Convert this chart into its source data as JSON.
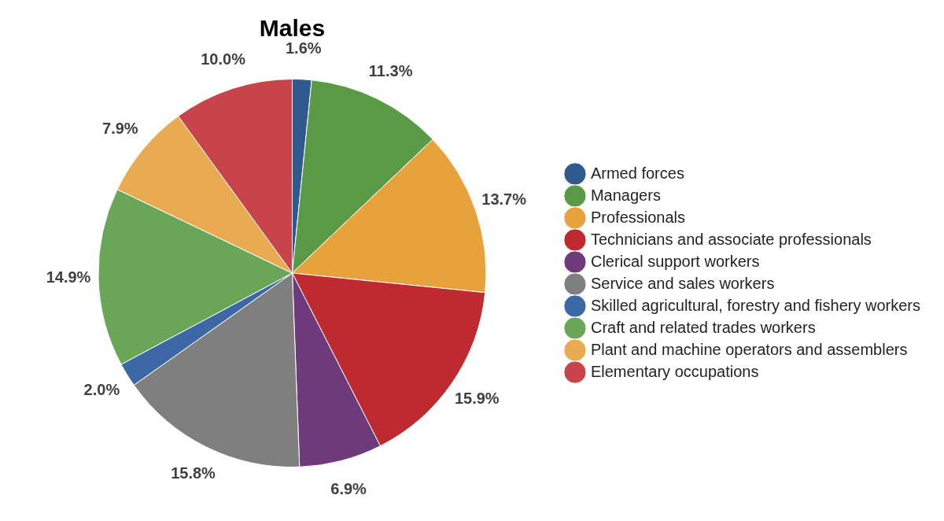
{
  "chart_data": {
    "type": "pie",
    "title": "Males",
    "categories": [
      "Armed forces",
      "Managers",
      "Professionals",
      "Technicians and associate professionals",
      "Clerical support workers",
      "Service and sales workers",
      "Skilled agricultural, forestry and fishery workers",
      "Craft and related trades workers",
      "Plant and machine operators and assemblers",
      "Elementary occupations"
    ],
    "values": [
      1.6,
      11.3,
      13.7,
      15.9,
      6.9,
      15.8,
      2.0,
      14.9,
      7.9,
      10.0
    ],
    "value_labels": [
      "1.6%",
      "11.3%",
      "13.7%",
      "15.9%",
      "6.9%",
      "15.8%",
      "2.0%",
      "14.9%",
      "7.9%",
      "10.0%"
    ],
    "colors": [
      "#2e5a8e",
      "#5a9a47",
      "#e8a23c",
      "#be2a2f",
      "#6e3a7c",
      "#7f7f7f",
      "#3d68a5",
      "#6aa657",
      "#e9ab52",
      "#c8434a"
    ],
    "legend": "right"
  }
}
